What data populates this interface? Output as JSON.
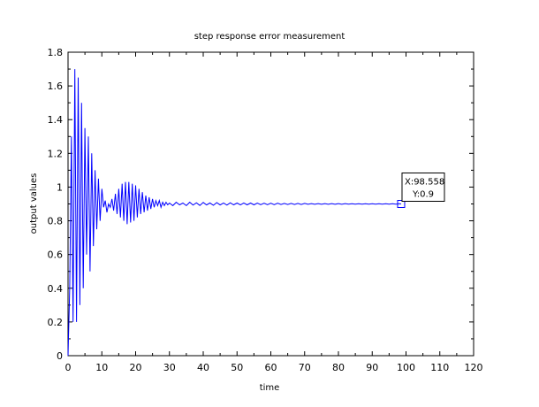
{
  "chart_data": {
    "type": "line",
    "title": "step response error measurement",
    "xlabel": "time",
    "ylabel": "output values",
    "xlim": [
      0,
      120
    ],
    "ylim": [
      0,
      1.8
    ],
    "xticks": [
      "0",
      "10",
      "20",
      "30",
      "40",
      "50",
      "60",
      "70",
      "80",
      "90",
      "100",
      "110",
      "120"
    ],
    "yticks": [
      "0",
      "0.2",
      "0.4",
      "0.6",
      "0.8",
      "1",
      "1.2",
      "1.4",
      "1.6",
      "1.8"
    ],
    "grid": false,
    "series": [
      {
        "color": "#0000ff",
        "x": [
          0,
          0.5,
          1.0,
          1.5,
          2.0,
          2.5,
          3.0,
          3.5,
          4.0,
          4.5,
          5.0,
          5.5,
          6.0,
          6.5,
          7.0,
          7.5,
          8.0,
          8.5,
          9.0,
          9.5,
          10.0,
          10.5,
          11.0,
          11.5,
          12.0,
          12.5,
          13.0,
          13.5,
          14.0,
          14.5,
          15.0,
          15.5,
          16.0,
          16.5,
          17.0,
          17.5,
          18.0,
          18.5,
          19.0,
          19.5,
          20.0,
          20.5,
          21.0,
          21.5,
          22.0,
          22.5,
          23.0,
          23.5,
          24.0,
          24.5,
          25.0,
          25.5,
          26.0,
          26.5,
          27.0,
          27.5,
          28.0,
          28.5,
          29.0,
          29.5,
          30.0,
          31.0,
          32.0,
          33.0,
          34.0,
          35.0,
          36.0,
          37.0,
          38.0,
          39.0,
          40.0,
          41.0,
          42.0,
          43.0,
          44.0,
          45.0,
          46.0,
          47.0,
          48.0,
          49.0,
          50.0,
          51.0,
          52.0,
          53.0,
          54.0,
          55.0,
          56.0,
          57.0,
          58.0,
          59.0,
          60.0,
          61.0,
          62.0,
          63.0,
          64.0,
          65.0,
          66.0,
          67.0,
          68.0,
          69.0,
          70.0,
          71.0,
          72.0,
          73.0,
          74.0,
          75.0,
          76.0,
          77.0,
          78.0,
          79.0,
          80.0,
          81.0,
          82.0,
          83.0,
          84.0,
          85.0,
          86.0,
          87.0,
          88.0,
          89.0,
          90.0,
          91.0,
          92.0,
          93.0,
          94.0,
          95.0,
          96.0,
          97.0,
          98.0,
          98.558
        ],
        "y": [
          0,
          0.4,
          1.3,
          0.2,
          1.7,
          0.2,
          1.65,
          0.3,
          1.5,
          0.4,
          1.35,
          0.6,
          1.3,
          0.5,
          1.2,
          0.65,
          1.1,
          0.75,
          1.05,
          0.8,
          0.99,
          0.88,
          0.92,
          0.85,
          0.9,
          0.88,
          0.93,
          0.86,
          0.96,
          0.84,
          0.99,
          0.82,
          1.02,
          0.8,
          1.03,
          0.78,
          1.03,
          0.79,
          1.02,
          0.8,
          1.01,
          0.82,
          0.99,
          0.84,
          0.97,
          0.85,
          0.95,
          0.86,
          0.94,
          0.87,
          0.93,
          0.88,
          0.92,
          0.89,
          0.92,
          0.88,
          0.91,
          0.89,
          0.91,
          0.895,
          0.905,
          0.89,
          0.91,
          0.895,
          0.905,
          0.89,
          0.91,
          0.893,
          0.907,
          0.891,
          0.909,
          0.894,
          0.906,
          0.892,
          0.908,
          0.894,
          0.906,
          0.893,
          0.907,
          0.895,
          0.905,
          0.894,
          0.906,
          0.895,
          0.905,
          0.895,
          0.905,
          0.896,
          0.904,
          0.896,
          0.904,
          0.896,
          0.904,
          0.897,
          0.903,
          0.897,
          0.903,
          0.897,
          0.903,
          0.897,
          0.903,
          0.898,
          0.902,
          0.898,
          0.902,
          0.898,
          0.902,
          0.898,
          0.902,
          0.898,
          0.902,
          0.898,
          0.902,
          0.899,
          0.901,
          0.899,
          0.901,
          0.899,
          0.901,
          0.899,
          0.901,
          0.899,
          0.901,
          0.899,
          0.901,
          0.899,
          0.901,
          0.899,
          0.901,
          0.9
        ]
      }
    ],
    "datatip": {
      "x": 98.558,
      "y": 0.9,
      "x_label": "X:98.558",
      "y_label": "Y:0.9"
    }
  }
}
